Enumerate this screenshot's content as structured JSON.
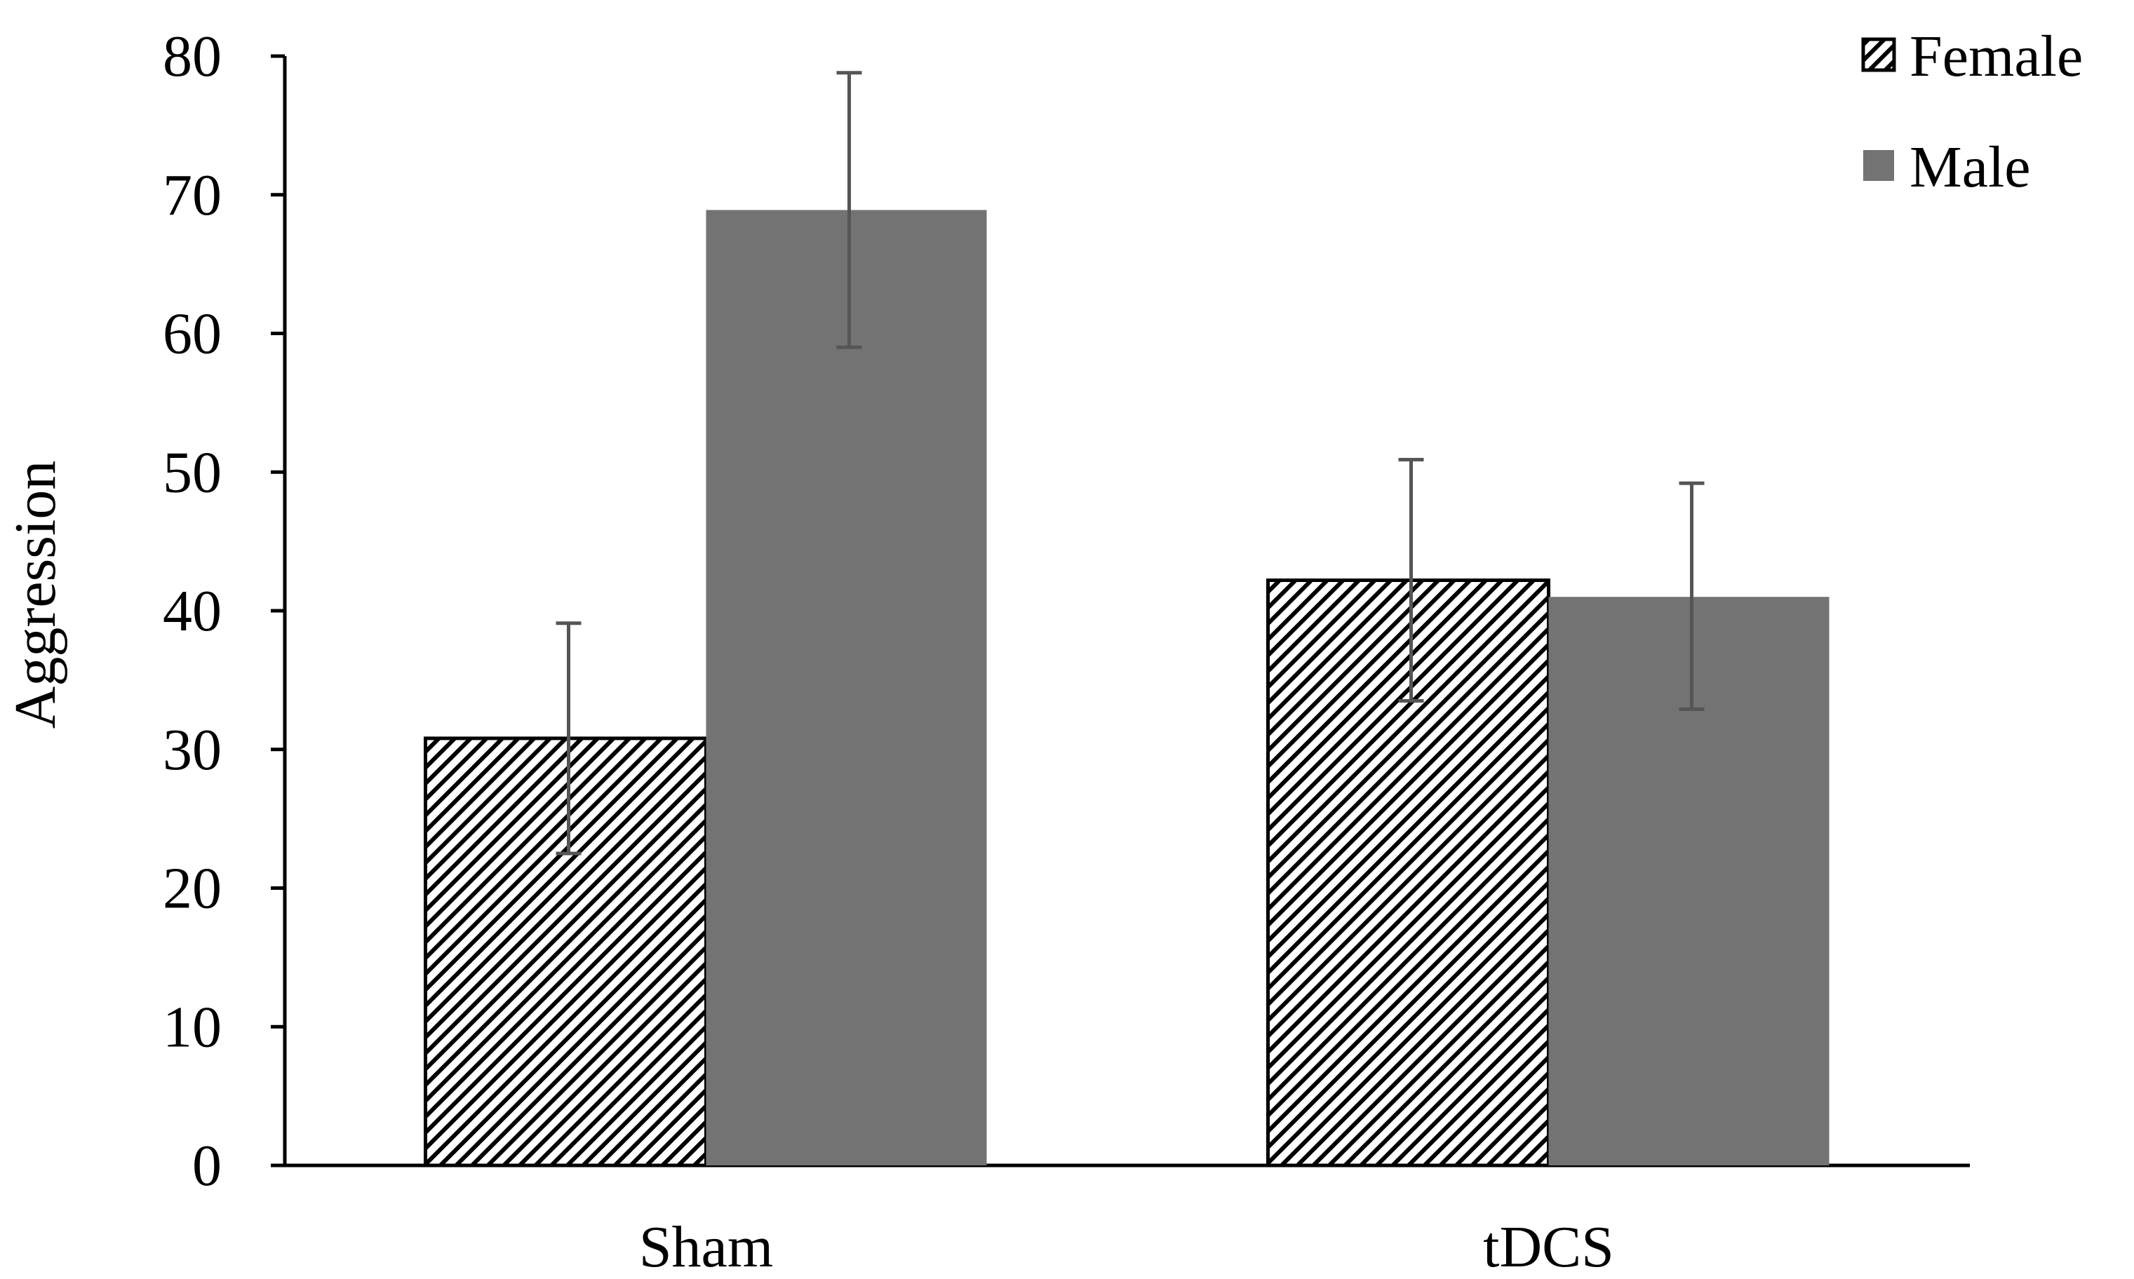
{
  "chart_data": {
    "type": "bar",
    "title": "",
    "xlabel": "",
    "ylabel": "Aggression",
    "ylim": [
      0,
      80
    ],
    "yticks": [
      0,
      10,
      20,
      30,
      40,
      50,
      60,
      70,
      80
    ],
    "grid": false,
    "legend_position": "top-right",
    "categories": [
      "Sham",
      "tDCS"
    ],
    "series": [
      {
        "name": "Female",
        "fill": "hatched",
        "color": "#000000",
        "values": [
          30.8,
          42.2
        ],
        "error_low": [
          22.5,
          33.5
        ],
        "error_high": [
          39.1,
          50.9
        ]
      },
      {
        "name": "Male",
        "fill": "solid",
        "color": "#737373",
        "values": [
          68.9,
          41.0
        ],
        "error_low": [
          59.0,
          32.9
        ],
        "error_high": [
          78.8,
          49.2
        ]
      }
    ]
  }
}
